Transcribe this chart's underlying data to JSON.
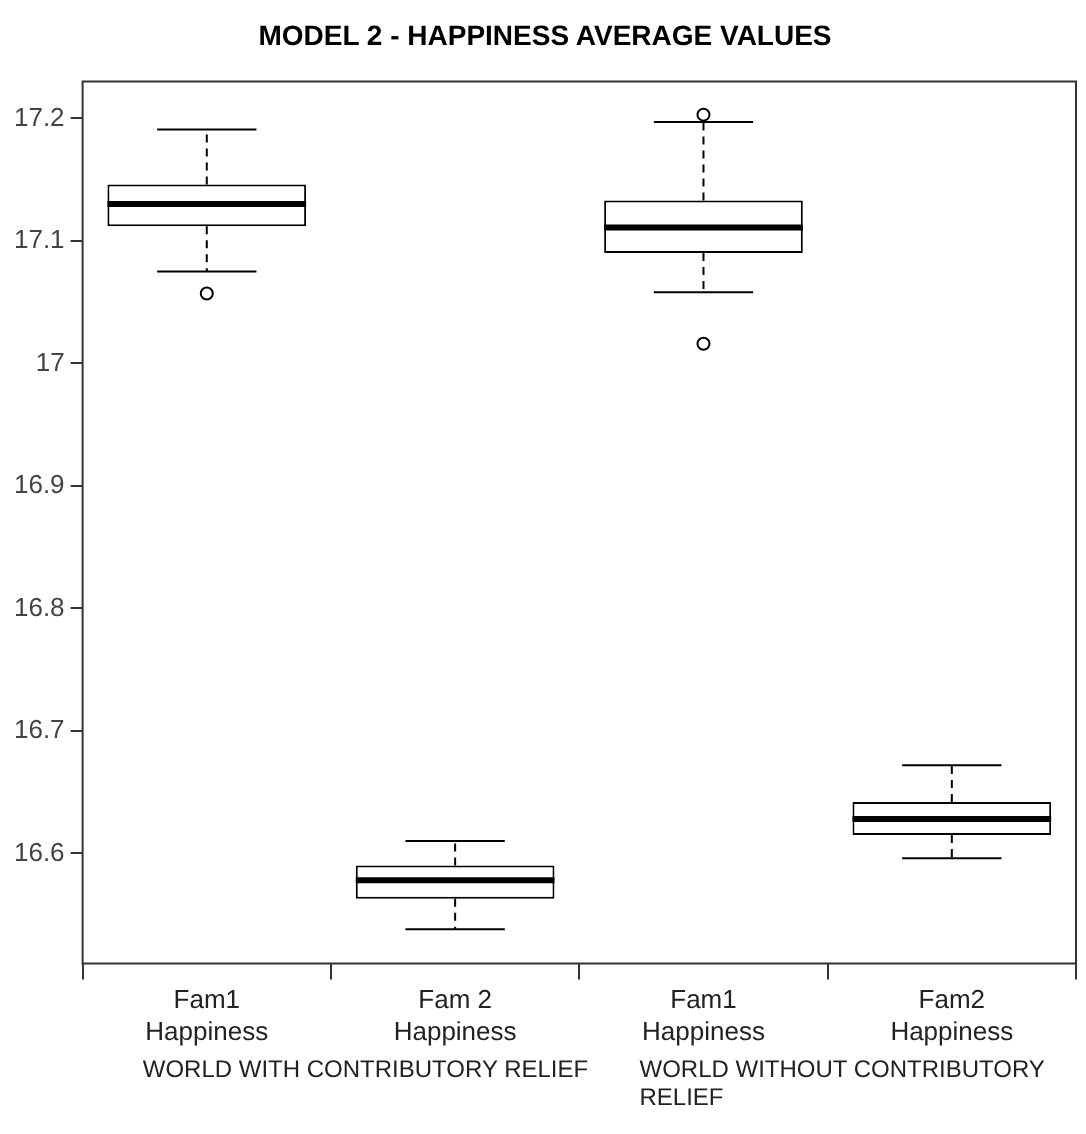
{
  "chart_data": {
    "type": "box",
    "title": "MODEL 2 - HAPPINESS AVERAGE VALUES",
    "categories": [
      "Fam1 Happiness",
      "Fam 2 Happiness",
      "Fam1 Happiness",
      "Fam2 Happiness"
    ],
    "boxes": [
      {
        "low": 17.075,
        "q1": 17.112,
        "median": 17.13,
        "q3": 17.146,
        "high": 17.191,
        "outliers": [
          17.057
        ]
      },
      {
        "low": 16.538,
        "q1": 16.563,
        "median": 16.578,
        "q3": 16.59,
        "high": 16.61
      },
      {
        "low": 17.058,
        "q1": 17.09,
        "median": 17.111,
        "q3": 17.133,
        "high": 17.197,
        "outliers": [
          17.203,
          17.016
        ]
      },
      {
        "low": 16.596,
        "q1": 16.615,
        "median": 16.628,
        "q3": 16.642,
        "high": 16.672
      }
    ],
    "ylim": [
      16.51,
      17.23
    ],
    "yticks": [
      16.6,
      16.7,
      16.8,
      16.9,
      17.0,
      17.1,
      17.2
    ],
    "annotations": [
      "WORLD WITH CONTRIBUTORY RELIEF",
      "WORLD WITHOUT CONTRIBUTORY RELIEF"
    ]
  }
}
